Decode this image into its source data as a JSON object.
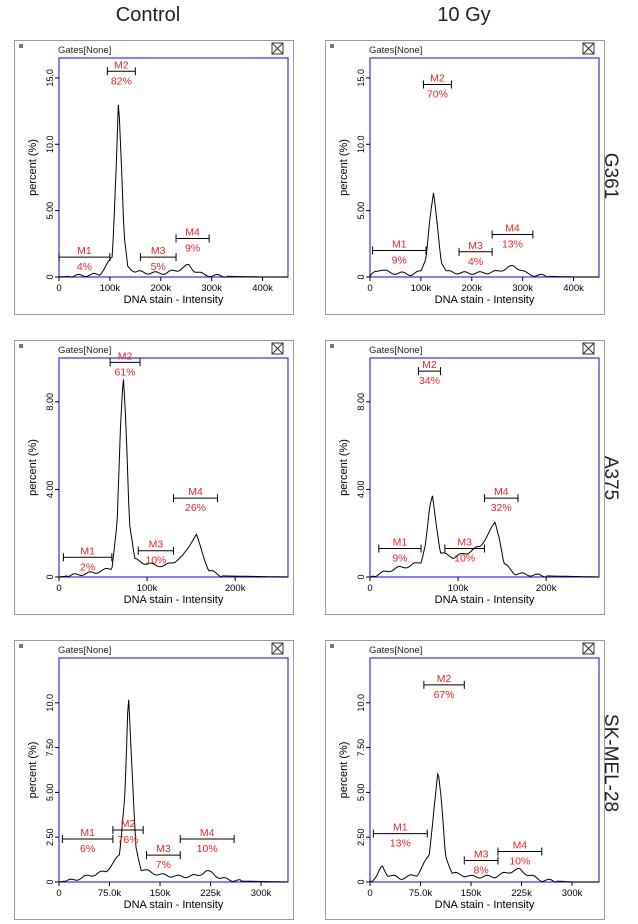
{
  "columns": [
    "Control",
    "10 Gy"
  ],
  "rows": [
    "G361",
    "A375",
    "SK-MEL-28"
  ],
  "colors": {
    "plot_border": "#3333dd",
    "marker": "#e8242a",
    "trace": "#000000",
    "frame": "#9a9a9a"
  },
  "chart_data": [
    {
      "type": "line",
      "cell_line": "G361",
      "condition": "Control",
      "gates_label": "Gates[None]",
      "xlabel": "DNA stain - Intensity",
      "ylabel": "percent (%)",
      "xlim": [
        0,
        450000
      ],
      "ylim": [
        0,
        16.5
      ],
      "xticks": [
        0,
        100000,
        200000,
        300000,
        400000
      ],
      "xtick_labels": [
        "0",
        "100k",
        "200k",
        "300k",
        "400k"
      ],
      "yticks": [
        0,
        5,
        10,
        15
      ],
      "ytick_labels": [
        "0",
        "5.00",
        "10.0",
        "15.0"
      ],
      "peaks": [
        [
          0,
          0
        ],
        [
          40000,
          0.1
        ],
        [
          80000,
          0.2
        ],
        [
          105000,
          1.5
        ],
        [
          112000,
          8.0
        ],
        [
          117000,
          13.5
        ],
        [
          122000,
          9.0
        ],
        [
          128000,
          3.0
        ],
        [
          135000,
          0.8
        ],
        [
          150000,
          0.4
        ],
        [
          180000,
          0.3
        ],
        [
          210000,
          0.3
        ],
        [
          235000,
          0.55
        ],
        [
          255000,
          0.9
        ],
        [
          265000,
          0.5
        ],
        [
          285000,
          0.15
        ],
        [
          330000,
          0.05
        ],
        [
          400000,
          0
        ],
        [
          450000,
          0
        ]
      ],
      "markers": [
        {
          "name": "M1",
          "percent": "4%",
          "x_range": [
            0,
            100000
          ],
          "y": 1.5
        },
        {
          "name": "M2",
          "percent": "82%",
          "x_range": [
            95000,
            150000
          ],
          "y": 15.5
        },
        {
          "name": "M3",
          "percent": "5%",
          "x_range": [
            160000,
            230000
          ],
          "y": 1.5
        },
        {
          "name": "M4",
          "percent": "9%",
          "x_range": [
            230000,
            295000
          ],
          "y": 2.9
        }
      ]
    },
    {
      "type": "line",
      "cell_line": "G361",
      "condition": "10 Gy",
      "gates_label": "Gates[None]",
      "xlabel": "DNA stain - Intensity",
      "ylabel": "percent (%)",
      "xlim": [
        0,
        450000
      ],
      "ylim": [
        0,
        16.5
      ],
      "xticks": [
        0,
        100000,
        200000,
        300000,
        400000
      ],
      "xtick_labels": [
        "0",
        "100k",
        "200k",
        "300k",
        "400k"
      ],
      "yticks": [
        0,
        5,
        10,
        15
      ],
      "ytick_labels": [
        "0",
        "5.00",
        "10.0",
        "15.0"
      ],
      "peaks": [
        [
          0,
          0
        ],
        [
          10000,
          0.4
        ],
        [
          20000,
          0.6
        ],
        [
          40000,
          0.3
        ],
        [
          60000,
          0.3
        ],
        [
          80000,
          0.2
        ],
        [
          100000,
          0.4
        ],
        [
          110000,
          1.5
        ],
        [
          118000,
          4.5
        ],
        [
          125000,
          6.3
        ],
        [
          132000,
          4.0
        ],
        [
          140000,
          1.2
        ],
        [
          150000,
          0.4
        ],
        [
          180000,
          0.3
        ],
        [
          220000,
          0.3
        ],
        [
          250000,
          0.4
        ],
        [
          270000,
          0.7
        ],
        [
          282000,
          0.8
        ],
        [
          295000,
          0.6
        ],
        [
          310000,
          0.2
        ],
        [
          350000,
          0.05
        ],
        [
          400000,
          0
        ],
        [
          450000,
          0
        ]
      ],
      "markers": [
        {
          "name": "M1",
          "percent": "9%",
          "x_range": [
            5000,
            110000
          ],
          "y": 2.0
        },
        {
          "name": "M2",
          "percent": "70%",
          "x_range": [
            105000,
            160000
          ],
          "y": 14.5
        },
        {
          "name": "M3",
          "percent": "4%",
          "x_range": [
            175000,
            240000
          ],
          "y": 1.9
        },
        {
          "name": "M4",
          "percent": "13%",
          "x_range": [
            240000,
            320000
          ],
          "y": 3.2
        }
      ]
    },
    {
      "type": "line",
      "cell_line": "A375",
      "condition": "Control",
      "gates_label": "Gates[None]",
      "xlabel": "DNA stain - Intensity",
      "ylabel": "percent (%)",
      "xlim": [
        0,
        260000
      ],
      "ylim": [
        0,
        10
      ],
      "xticks": [
        0,
        100000,
        200000
      ],
      "xtick_labels": [
        "0",
        "100k",
        "200k"
      ],
      "yticks": [
        0,
        4,
        8
      ],
      "ytick_labels": [
        "0",
        "4.00",
        "8.00"
      ],
      "peaks": [
        [
          0,
          0
        ],
        [
          20000,
          0.1
        ],
        [
          40000,
          0.2
        ],
        [
          60000,
          0.4
        ],
        [
          66000,
          2.5
        ],
        [
          70000,
          7.0
        ],
        [
          73000,
          9.2
        ],
        [
          76000,
          7.0
        ],
        [
          80000,
          2.5
        ],
        [
          86000,
          0.8
        ],
        [
          100000,
          0.6
        ],
        [
          120000,
          0.5
        ],
        [
          140000,
          0.9
        ],
        [
          150000,
          1.6
        ],
        [
          156000,
          1.9
        ],
        [
          162000,
          1.2
        ],
        [
          170000,
          0.3
        ],
        [
          185000,
          0.05
        ],
        [
          260000,
          0
        ]
      ],
      "markers": [
        {
          "name": "M1",
          "percent": "2%",
          "x_range": [
            5000,
            60000
          ],
          "y": 0.9
        },
        {
          "name": "M2",
          "percent": "61%",
          "x_range": [
            58000,
            92000
          ],
          "y": 9.8
        },
        {
          "name": "M3",
          "percent": "10%",
          "x_range": [
            90000,
            130000
          ],
          "y": 1.2
        },
        {
          "name": "M4",
          "percent": "26%",
          "x_range": [
            130000,
            180000
          ],
          "y": 3.6
        }
      ]
    },
    {
      "type": "line",
      "cell_line": "A375",
      "condition": "10 Gy",
      "gates_label": "Gates[None]",
      "xlabel": "DNA stain - Intensity",
      "ylabel": "percent (%)",
      "xlim": [
        0,
        260000
      ],
      "ylim": [
        0,
        10
      ],
      "xticks": [
        0,
        100000,
        200000
      ],
      "xtick_labels": [
        "0",
        "100k",
        "200k"
      ],
      "yticks": [
        0,
        4,
        8
      ],
      "ytick_labels": [
        "0",
        "4.00",
        "8.00"
      ],
      "peaks": [
        [
          0,
          0
        ],
        [
          15000,
          0.2
        ],
        [
          30000,
          0.4
        ],
        [
          45000,
          0.5
        ],
        [
          58000,
          0.7
        ],
        [
          63000,
          1.5
        ],
        [
          68000,
          3.2
        ],
        [
          71000,
          3.7
        ],
        [
          75000,
          2.5
        ],
        [
          80000,
          1.1
        ],
        [
          95000,
          0.9
        ],
        [
          110000,
          1.1
        ],
        [
          125000,
          1.4
        ],
        [
          135000,
          2.0
        ],
        [
          142000,
          2.5
        ],
        [
          147000,
          1.8
        ],
        [
          152000,
          0.6
        ],
        [
          165000,
          0.15
        ],
        [
          200000,
          0.05
        ],
        [
          260000,
          0
        ]
      ],
      "markers": [
        {
          "name": "M1",
          "percent": "9%",
          "x_range": [
            10000,
            58000
          ],
          "y": 1.3
        },
        {
          "name": "M2",
          "percent": "34%",
          "x_range": [
            55000,
            80000
          ],
          "y": 9.4
        },
        {
          "name": "M3",
          "percent": "10%",
          "x_range": [
            85000,
            130000
          ],
          "y": 1.3
        },
        {
          "name": "M4",
          "percent": "32%",
          "x_range": [
            130000,
            168000
          ],
          "y": 3.6
        }
      ]
    },
    {
      "type": "line",
      "cell_line": "SK-MEL-28",
      "condition": "Control",
      "gates_label": "Gates[None]",
      "xlabel": "DNA stain - Intensity",
      "ylabel": "percent (%)",
      "xlim": [
        0,
        340000
      ],
      "ylim": [
        0,
        12.5
      ],
      "xticks": [
        0,
        75000,
        150000,
        225000,
        300000
      ],
      "xtick_labels": [
        "0",
        "75.0k",
        "150k",
        "225k",
        "300k"
      ],
      "yticks": [
        0,
        2.5,
        5,
        7.5,
        10
      ],
      "ytick_labels": [
        "0",
        "2.50",
        "5.00",
        "7.50",
        "10.0"
      ],
      "peaks": [
        [
          0,
          0
        ],
        [
          20000,
          0.1
        ],
        [
          40000,
          0.3
        ],
        [
          70000,
          0.6
        ],
        [
          90000,
          1.5
        ],
        [
          98000,
          5.0
        ],
        [
          103000,
          10.6
        ],
        [
          108000,
          6.5
        ],
        [
          114000,
          2.0
        ],
        [
          122000,
          0.7
        ],
        [
          150000,
          0.4
        ],
        [
          180000,
          0.3
        ],
        [
          205000,
          0.35
        ],
        [
          218000,
          0.6
        ],
        [
          228000,
          0.5
        ],
        [
          240000,
          0.2
        ],
        [
          270000,
          0.05
        ],
        [
          340000,
          0
        ]
      ],
      "markers": [
        {
          "name": "M1",
          "percent": "6%",
          "x_range": [
            5000,
            80000
          ],
          "y": 2.4
        },
        {
          "name": "M2",
          "percent": "76%",
          "x_range": [
            80000,
            125000
          ],
          "y": 2.9
        },
        {
          "name": "M3",
          "percent": "7%",
          "x_range": [
            130000,
            180000
          ],
          "y": 1.5
        },
        {
          "name": "M4",
          "percent": "10%",
          "x_range": [
            180000,
            260000
          ],
          "y": 2.4
        }
      ]
    },
    {
      "type": "line",
      "cell_line": "SK-MEL-28",
      "condition": "10 Gy",
      "gates_label": "Gates[None]",
      "xlabel": "DNA stain - Intensity",
      "ylabel": "percent (%)",
      "xlim": [
        0,
        340000
      ],
      "ylim": [
        0,
        12.5
      ],
      "xticks": [
        0,
        75000,
        150000,
        225000,
        300000
      ],
      "xtick_labels": [
        "0",
        "75.0k",
        "150k",
        "225k",
        "300k"
      ],
      "yticks": [
        0,
        2.5,
        5,
        7.5,
        10
      ],
      "ytick_labels": [
        "0",
        "2.50",
        "5.00",
        "7.50",
        "10.0"
      ],
      "peaks": [
        [
          0,
          0
        ],
        [
          10000,
          0.3
        ],
        [
          18000,
          0.9
        ],
        [
          26000,
          0.4
        ],
        [
          45000,
          0.2
        ],
        [
          70000,
          0.4
        ],
        [
          88000,
          1.5
        ],
        [
          96000,
          4.5
        ],
        [
          101000,
          6.2
        ],
        [
          106000,
          4.5
        ],
        [
          112000,
          1.5
        ],
        [
          122000,
          0.5
        ],
        [
          150000,
          0.3
        ],
        [
          185000,
          0.3
        ],
        [
          210000,
          0.6
        ],
        [
          222000,
          0.7
        ],
        [
          235000,
          0.4
        ],
        [
          255000,
          0.1
        ],
        [
          300000,
          0
        ],
        [
          340000,
          0
        ]
      ],
      "markers": [
        {
          "name": "M1",
          "percent": "13%",
          "x_range": [
            5000,
            85000
          ],
          "y": 2.7
        },
        {
          "name": "M2",
          "percent": "67%",
          "x_range": [
            80000,
            140000
          ],
          "y": 11.0
        },
        {
          "name": "M3",
          "percent": "8%",
          "x_range": [
            140000,
            190000
          ],
          "y": 1.2
        },
        {
          "name": "M4",
          "percent": "10%",
          "x_range": [
            190000,
            255000
          ],
          "y": 1.7
        }
      ]
    }
  ]
}
